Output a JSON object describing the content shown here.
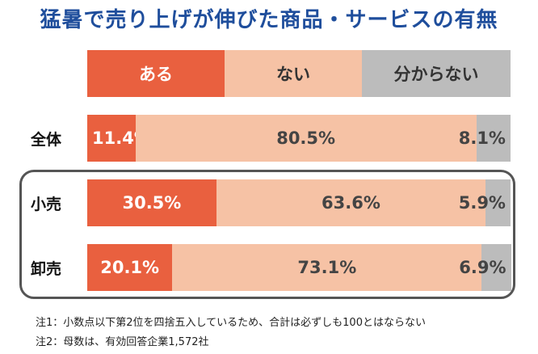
{
  "title": "猛暑で売り上げが伸びた商品・サービスの有無",
  "colors": {
    "yes": "#e9603f",
    "no": "#f6c2a5",
    "unknown": "#bcbcbc",
    "title": "#1f4e9c"
  },
  "legend": [
    "ある",
    "ない",
    "分からない"
  ],
  "chart_data": {
    "type": "bar",
    "orientation": "horizontal",
    "stacked": true,
    "percent": true,
    "title": "猛暑で売り上げが伸びた商品・サービスの有無",
    "categories": [
      "全体",
      "小売",
      "卸売"
    ],
    "series": [
      {
        "name": "ある",
        "values": [
          11.4,
          30.5,
          20.1
        ],
        "labels": [
          "11.4%",
          "30.5%",
          "20.1%"
        ]
      },
      {
        "name": "ない",
        "values": [
          80.5,
          63.6,
          73.1
        ],
        "labels": [
          "80.5%",
          "63.6%",
          "73.1%"
        ]
      },
      {
        "name": "分からない",
        "values": [
          8.1,
          5.9,
          6.9
        ],
        "labels": [
          "8.1%",
          "5.9%",
          "6.9%"
        ]
      }
    ],
    "xlim": [
      0,
      100
    ]
  },
  "notes": [
    "注1：小数点以下第2位を四捨五入しているため、合計は必ずしも100とはならない",
    "注2：母数は、有効回答企業1,572社"
  ]
}
